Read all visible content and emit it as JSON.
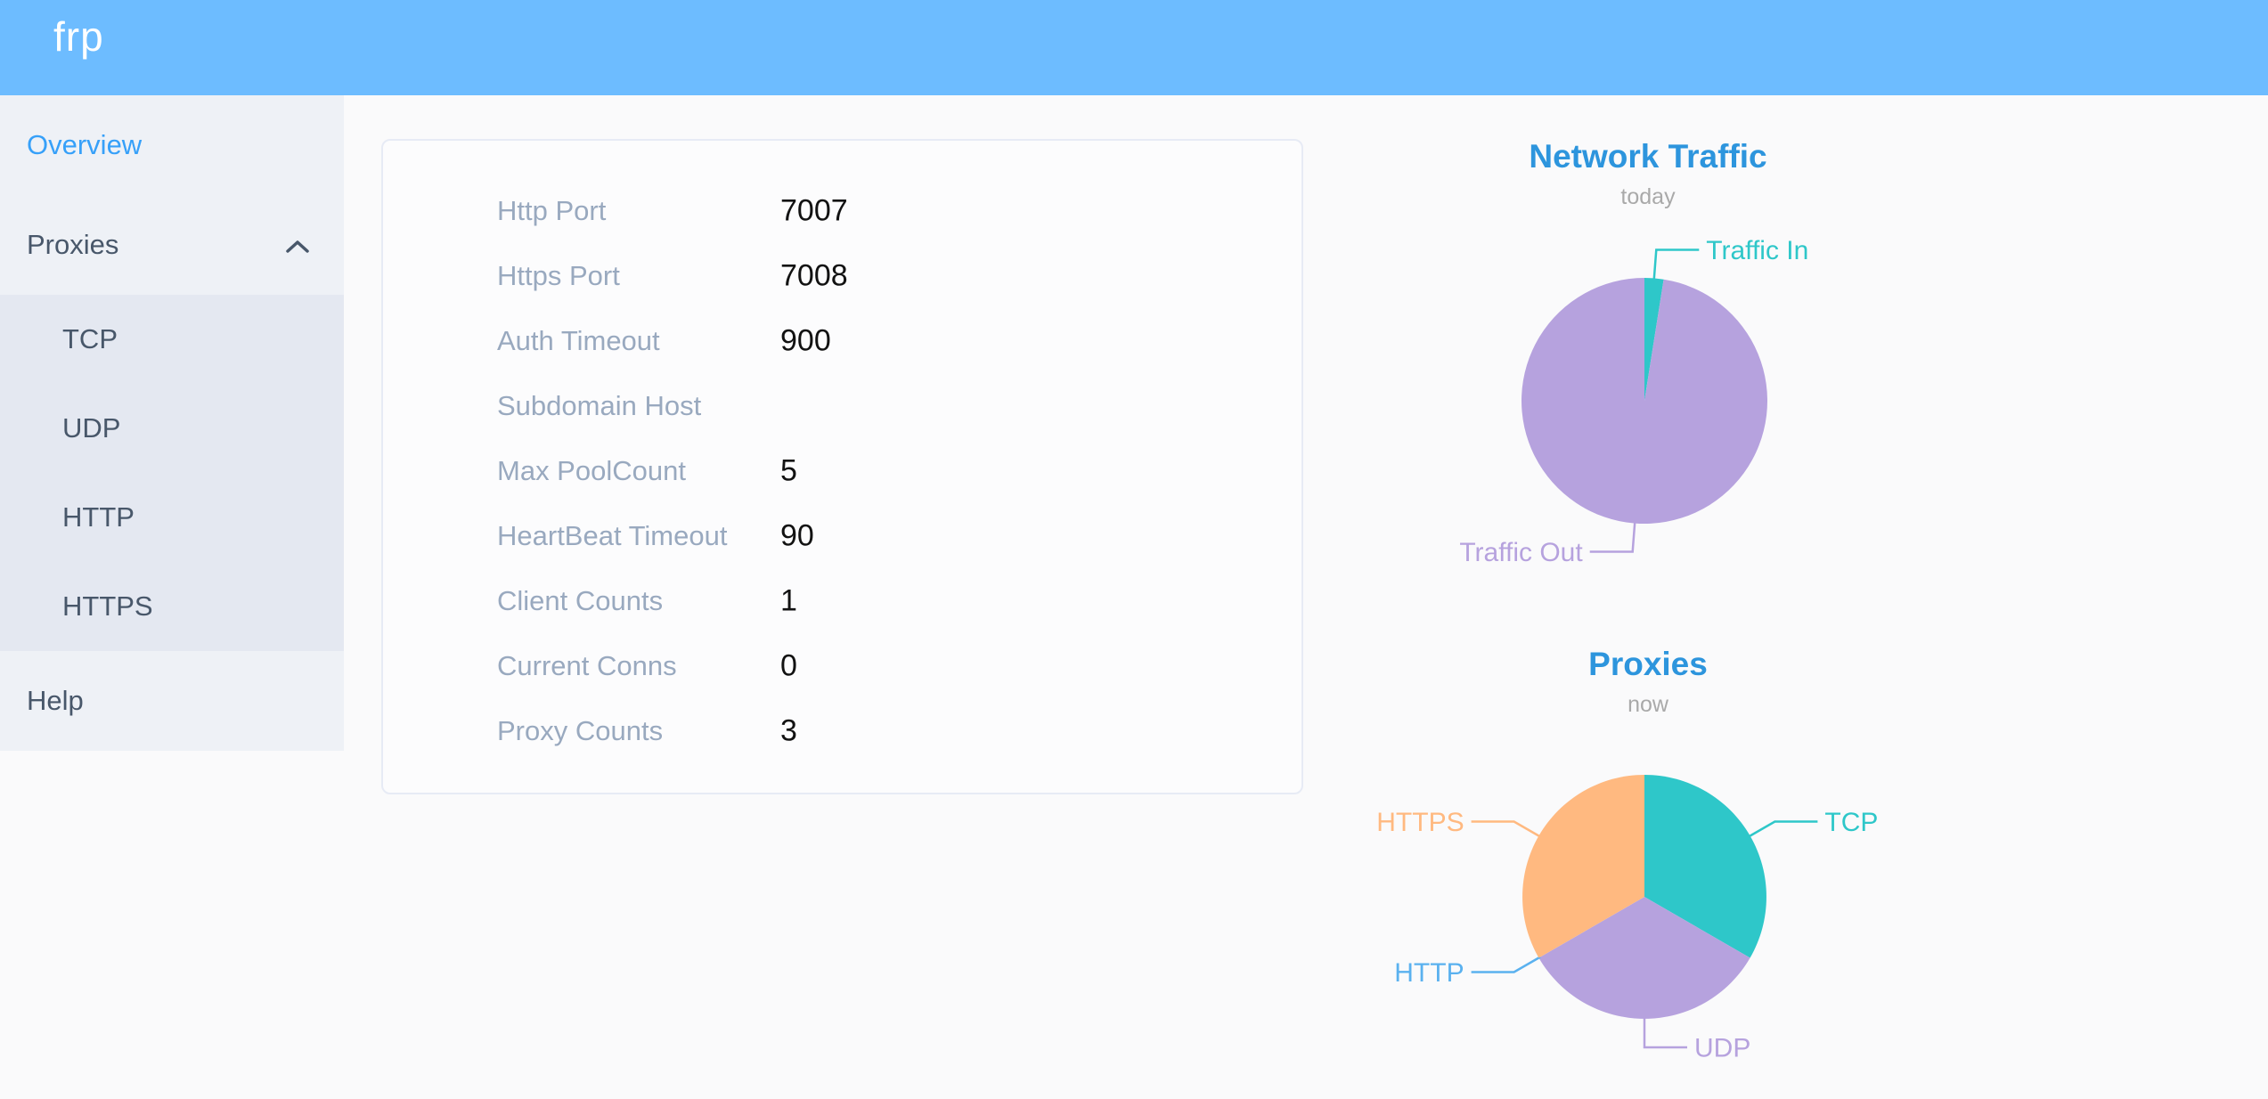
{
  "header": {
    "logo_text": "frp"
  },
  "sidebar": {
    "overview_label": "Overview",
    "proxies_label": "Proxies",
    "proxies_expanded": true,
    "proxies_children": [
      "TCP",
      "UDP",
      "HTTP",
      "HTTPS"
    ],
    "help_label": "Help"
  },
  "server_info": {
    "rows": [
      {
        "label": "Http Port",
        "value": "7007"
      },
      {
        "label": "Https Port",
        "value": "7008"
      },
      {
        "label": "Auth Timeout",
        "value": "900"
      },
      {
        "label": "Subdomain Host",
        "value": ""
      },
      {
        "label": "Max PoolCount",
        "value": "5"
      },
      {
        "label": "HeartBeat Timeout",
        "value": "90"
      },
      {
        "label": "Client Counts",
        "value": "1"
      },
      {
        "label": "Current Conns",
        "value": "0"
      },
      {
        "label": "Proxy Counts",
        "value": "3"
      }
    ]
  },
  "chart_data": [
    {
      "type": "pie",
      "title": "Network Traffic",
      "subtitle": "today",
      "start_angle_deg": 90,
      "clockwise": true,
      "legend": "none",
      "labels": "outside-with-leader-lines",
      "values_unit": "share_percent_estimated",
      "slices": [
        {
          "name": "Traffic In",
          "value": 2.5,
          "color": "#2ec7c9"
        },
        {
          "name": "Traffic Out",
          "value": 97.5,
          "color": "#b6a2de"
        }
      ]
    },
    {
      "type": "pie",
      "title": "Proxies",
      "subtitle": "now",
      "start_angle_deg": 90,
      "clockwise": true,
      "legend": "none",
      "labels": "outside-with-leader-lines",
      "values_unit": "proxy_count",
      "slices": [
        {
          "name": "TCP",
          "value": 1,
          "color": "#2ec7c9"
        },
        {
          "name": "UDP",
          "value": 1,
          "color": "#b6a2de"
        },
        {
          "name": "HTTP",
          "value": 0,
          "color": "#5ab1ef"
        },
        {
          "name": "HTTPS",
          "value": 1,
          "color": "#ffb980"
        }
      ]
    }
  ],
  "colors": {
    "header_bar": "#6dbcff",
    "sidebar_bg": "#eef1f6",
    "submenu_bg": "#e4e8f1",
    "sidebar_text": "#48576a",
    "active_item": "#36a0f9",
    "chart_title_blue": "#2d95dd",
    "subtitle_gray": "#a9a9a9",
    "config_label": "#99a9bf"
  }
}
